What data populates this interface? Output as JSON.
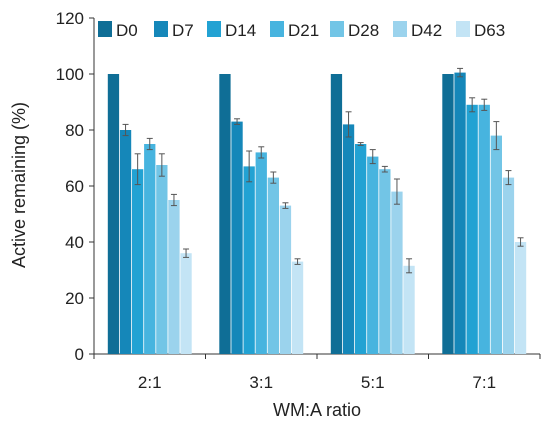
{
  "chart_data": {
    "type": "bar",
    "title": "",
    "xlabel": "WM:A ratio",
    "ylabel": "Active remaining (%)",
    "ylim": [
      0,
      120
    ],
    "yticks": [
      0,
      20,
      40,
      60,
      80,
      100,
      120
    ],
    "categories": [
      "2:1",
      "3:1",
      "5:1",
      "7:1"
    ],
    "legend_position": "top",
    "grid": false,
    "series": [
      {
        "name": "D0",
        "color": "#0f6e96",
        "values": [
          100,
          100,
          100,
          100
        ],
        "errors": [
          0,
          0,
          0,
          0
        ]
      },
      {
        "name": "D7",
        "color": "#1587b9",
        "values": [
          80,
          83,
          82,
          100.5
        ],
        "errors": [
          2,
          1,
          4.5,
          1.5
        ]
      },
      {
        "name": "D14",
        "color": "#22a2d3",
        "values": [
          66,
          67,
          75,
          89
        ],
        "errors": [
          5.5,
          5.5,
          0.5,
          2.5
        ]
      },
      {
        "name": "D21",
        "color": "#47b4df",
        "values": [
          75,
          72,
          70.5,
          89
        ],
        "errors": [
          2,
          2,
          2.5,
          2
        ]
      },
      {
        "name": "D28",
        "color": "#72c5e6",
        "values": [
          67.5,
          63,
          66,
          78
        ],
        "errors": [
          4,
          2,
          1,
          5
        ]
      },
      {
        "name": "D42",
        "color": "#9bd3ed",
        "values": [
          55,
          53,
          58,
          63
        ],
        "errors": [
          2,
          1,
          4.5,
          2.5
        ]
      },
      {
        "name": "D63",
        "color": "#c3e4f5",
        "values": [
          36,
          33,
          31.5,
          40
        ],
        "errors": [
          1.5,
          1,
          2.5,
          1.5
        ]
      }
    ]
  }
}
